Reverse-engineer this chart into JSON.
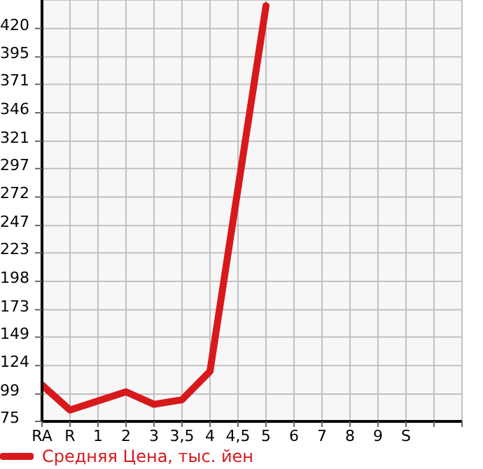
{
  "chart_data": {
    "type": "line",
    "categories": [
      "RA",
      "R",
      "1",
      "2",
      "3",
      "3,5",
      "4",
      "4,5",
      "5",
      "6",
      "7",
      "8",
      "9",
      "S",
      null,
      null
    ],
    "series": [
      {
        "name": "Средняя Цена, тыс. йен",
        "color": "#d7191c",
        "values": [
          107,
          85,
          93,
          101,
          90,
          94,
          119,
          null,
          440,
          null,
          null,
          null,
          null,
          null,
          null,
          null
        ]
      }
    ],
    "ylim": [
      75,
      445
    ],
    "yticks": [
      75,
      99,
      124,
      149,
      173,
      198,
      223,
      247,
      272,
      297,
      321,
      346,
      371,
      395,
      420
    ],
    "grid": true,
    "legend": "bottom left",
    "marker": "none",
    "line_style": "solid"
  }
}
